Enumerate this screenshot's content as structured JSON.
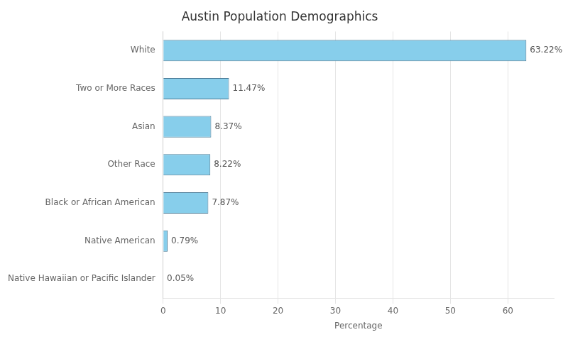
{
  "chart_data": {
    "type": "bar",
    "orientation": "horizontal",
    "title": "Austin Population Demographics",
    "xlabel": "Percentage",
    "categories": [
      "Native Hawaiian or Pacific Islander",
      "Native American",
      "Black or African American",
      "Other Race",
      "Asian",
      "Two or More Races",
      "White"
    ],
    "values": [
      0.05,
      0.79,
      7.87,
      8.22,
      8.37,
      11.47,
      63.22
    ],
    "value_labels": [
      "0.05%",
      "0.79%",
      "7.87%",
      "8.22%",
      "8.37%",
      "11.47%",
      "63.22%"
    ],
    "data_labels": true,
    "color": "#87CEEB",
    "xlim": [
      0,
      68
    ],
    "xticks": [
      0,
      10,
      20,
      30,
      40,
      50,
      60
    ],
    "grid": true
  }
}
